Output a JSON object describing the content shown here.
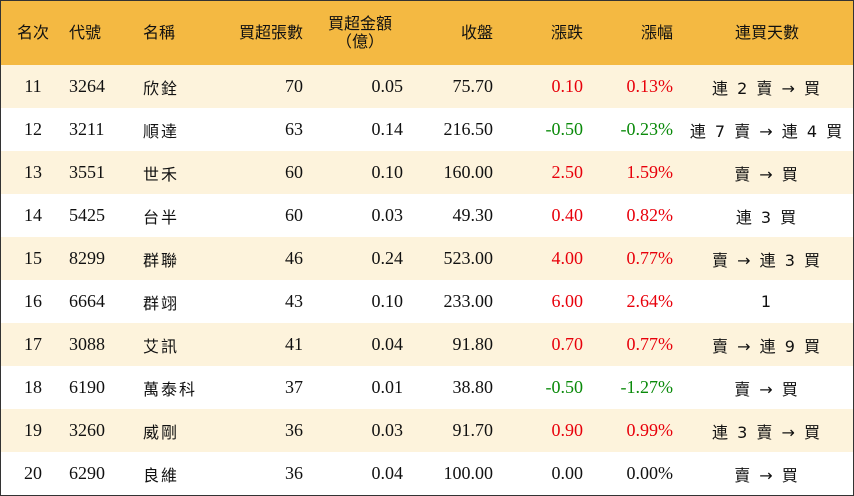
{
  "colors": {
    "header_bg": "#f4b942",
    "stripe_bg": "#fdf3dc",
    "plain_bg": "#ffffff",
    "up": "#e8000b",
    "down": "#0a8a0a"
  },
  "headers": {
    "rank": "名次",
    "code": "代號",
    "name": "名稱",
    "net_buy_lots": "買超張數",
    "net_buy_amount_line1": "買超金額",
    "net_buy_amount_line2": "（億）",
    "close": "收盤",
    "change": "漲跌",
    "change_pct": "漲幅",
    "consecutive_buy_days": "連買天數"
  },
  "rows": [
    {
      "rank": "11",
      "code": "3264",
      "name": "欣銓",
      "lots": "70",
      "amount": "0.05",
      "close": "75.70",
      "change": "0.10",
      "pct": "0.13%",
      "days": "連 2 賣 → 買",
      "dir": "up"
    },
    {
      "rank": "12",
      "code": "3211",
      "name": "順達",
      "lots": "63",
      "amount": "0.14",
      "close": "216.50",
      "change": "-0.50",
      "pct": "-0.23%",
      "days": "連 7 賣 → 連 4 買",
      "dir": "down"
    },
    {
      "rank": "13",
      "code": "3551",
      "name": "世禾",
      "lots": "60",
      "amount": "0.10",
      "close": "160.00",
      "change": "2.50",
      "pct": "1.59%",
      "days": "賣 → 買",
      "dir": "up"
    },
    {
      "rank": "14",
      "code": "5425",
      "name": "台半",
      "lots": "60",
      "amount": "0.03",
      "close": "49.30",
      "change": "0.40",
      "pct": "0.82%",
      "days": "連 3 買",
      "dir": "up"
    },
    {
      "rank": "15",
      "code": "8299",
      "name": "群聯",
      "lots": "46",
      "amount": "0.24",
      "close": "523.00",
      "change": "4.00",
      "pct": "0.77%",
      "days": "賣 → 連 3 買",
      "dir": "up"
    },
    {
      "rank": "16",
      "code": "6664",
      "name": "群翊",
      "lots": "43",
      "amount": "0.10",
      "close": "233.00",
      "change": "6.00",
      "pct": "2.64%",
      "days": "1",
      "dir": "up"
    },
    {
      "rank": "17",
      "code": "3088",
      "name": "艾訊",
      "lots": "41",
      "amount": "0.04",
      "close": "91.80",
      "change": "0.70",
      "pct": "0.77%",
      "days": "賣 → 連 9 買",
      "dir": "up"
    },
    {
      "rank": "18",
      "code": "6190",
      "name": "萬泰科",
      "lots": "37",
      "amount": "0.01",
      "close": "38.80",
      "change": "-0.50",
      "pct": "-1.27%",
      "days": "賣 → 買",
      "dir": "down"
    },
    {
      "rank": "19",
      "code": "3260",
      "name": "威剛",
      "lots": "36",
      "amount": "0.03",
      "close": "91.70",
      "change": "0.90",
      "pct": "0.99%",
      "days": "連 3 賣 → 買",
      "dir": "up"
    },
    {
      "rank": "20",
      "code": "6290",
      "name": "良維",
      "lots": "36",
      "amount": "0.04",
      "close": "100.00",
      "change": "0.00",
      "pct": "0.00%",
      "days": "賣 → 買",
      "dir": "flat"
    }
  ]
}
